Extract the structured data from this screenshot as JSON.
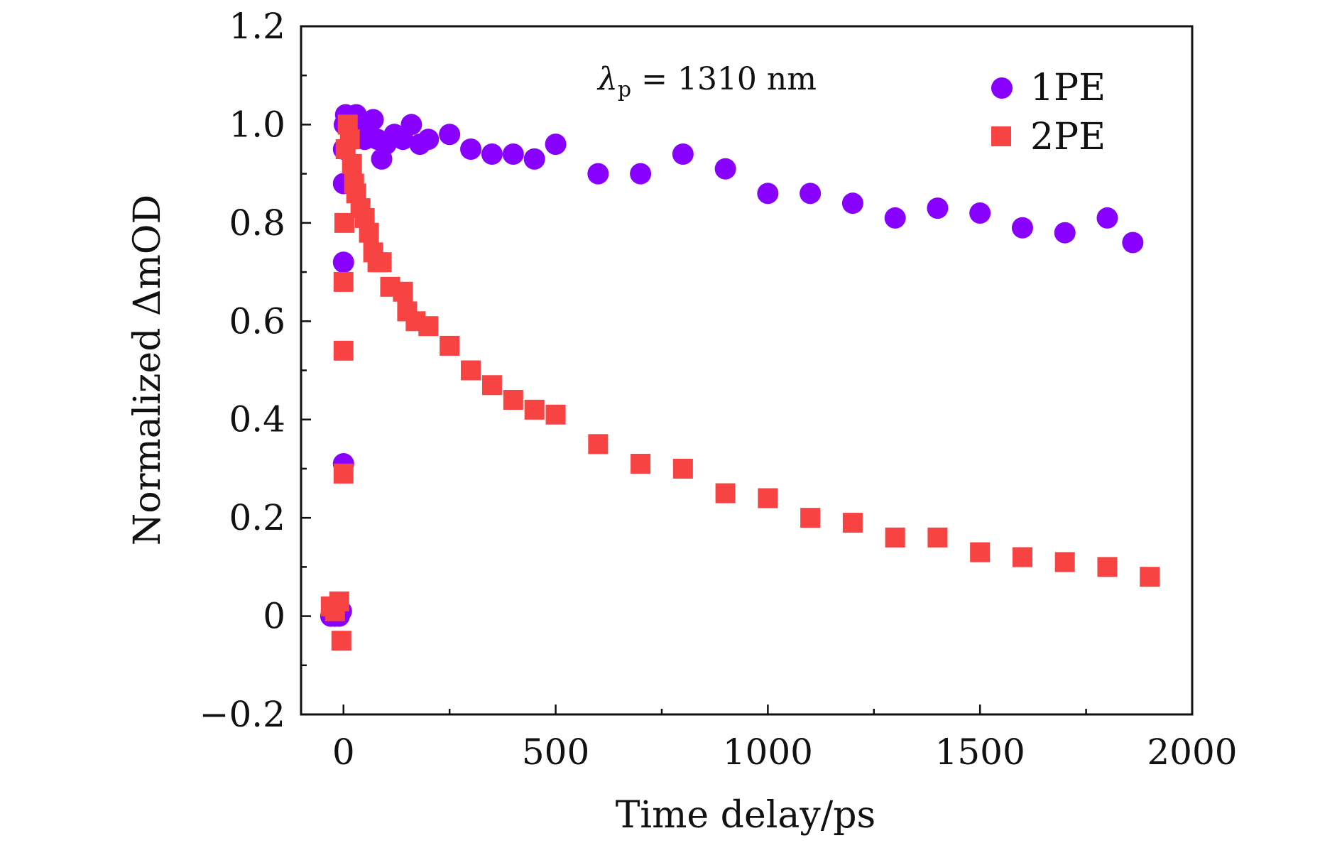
{
  "chart_data": {
    "type": "scatter",
    "title": "",
    "xlabel": "Time delay/ps",
    "ylabel": "Normalized ΔmOD",
    "xlim": [
      -100,
      2000
    ],
    "ylim": [
      -0.2,
      1.2
    ],
    "x_ticks": [
      0,
      500,
      1000,
      1500,
      2000
    ],
    "x_tick_labels": [
      "0",
      "500",
      "1000",
      "1500",
      "2000"
    ],
    "y_ticks": [
      -0.2,
      0,
      0.2,
      0.4,
      0.6,
      0.8,
      1.0,
      1.2
    ],
    "y_tick_labels": [
      "−0.2",
      "0",
      "0.2",
      "0.4",
      "0.6",
      "0.8",
      "1.0",
      "1.2"
    ],
    "grid": false,
    "legend_position": "top-right",
    "annotation": {
      "symbol": "λ",
      "subscript": "p",
      "text": " = 1310 nm"
    },
    "series": [
      {
        "name": "1PE",
        "marker": "circle",
        "color": "#8800ff",
        "points": [
          [
            -30,
            0.0
          ],
          [
            -20,
            0.0
          ],
          [
            -10,
            0.0
          ],
          [
            -5,
            0.01
          ],
          [
            0,
            0.31
          ],
          [
            0,
            0.72
          ],
          [
            0,
            0.88
          ],
          [
            0,
            0.95
          ],
          [
            2,
            1.0
          ],
          [
            5,
            1.02
          ],
          [
            10,
            1.0
          ],
          [
            20,
            0.98
          ],
          [
            30,
            1.02
          ],
          [
            40,
            0.99
          ],
          [
            50,
            0.97
          ],
          [
            60,
            1.0
          ],
          [
            70,
            1.01
          ],
          [
            80,
            0.97
          ],
          [
            90,
            0.93
          ],
          [
            100,
            0.96
          ],
          [
            120,
            0.98
          ],
          [
            140,
            0.97
          ],
          [
            160,
            1.0
          ],
          [
            180,
            0.96
          ],
          [
            200,
            0.97
          ],
          [
            250,
            0.98
          ],
          [
            300,
            0.95
          ],
          [
            350,
            0.94
          ],
          [
            400,
            0.94
          ],
          [
            450,
            0.93
          ],
          [
            500,
            0.96
          ],
          [
            600,
            0.9
          ],
          [
            700,
            0.9
          ],
          [
            800,
            0.94
          ],
          [
            900,
            0.91
          ],
          [
            1000,
            0.86
          ],
          [
            1100,
            0.86
          ],
          [
            1200,
            0.84
          ],
          [
            1300,
            0.81
          ],
          [
            1400,
            0.83
          ],
          [
            1500,
            0.82
          ],
          [
            1600,
            0.79
          ],
          [
            1700,
            0.78
          ],
          [
            1800,
            0.81
          ],
          [
            1860,
            0.76
          ]
        ]
      },
      {
        "name": "2PE",
        "marker": "square",
        "color": "#f84343",
        "points": [
          [
            -30,
            0.02
          ],
          [
            -20,
            0.01
          ],
          [
            -10,
            0.03
          ],
          [
            -5,
            -0.05
          ],
          [
            0,
            0.29
          ],
          [
            0,
            0.54
          ],
          [
            0,
            0.68
          ],
          [
            2,
            0.8
          ],
          [
            5,
            0.95
          ],
          [
            10,
            1.0
          ],
          [
            15,
            0.97
          ],
          [
            20,
            0.92
          ],
          [
            25,
            0.88
          ],
          [
            30,
            0.86
          ],
          [
            40,
            0.83
          ],
          [
            50,
            0.81
          ],
          [
            60,
            0.78
          ],
          [
            70,
            0.74
          ],
          [
            80,
            0.72
          ],
          [
            90,
            0.72
          ],
          [
            110,
            0.67
          ],
          [
            140,
            0.66
          ],
          [
            150,
            0.62
          ],
          [
            170,
            0.6
          ],
          [
            200,
            0.59
          ],
          [
            250,
            0.55
          ],
          [
            300,
            0.5
          ],
          [
            350,
            0.47
          ],
          [
            400,
            0.44
          ],
          [
            450,
            0.42
          ],
          [
            500,
            0.41
          ],
          [
            600,
            0.35
          ],
          [
            700,
            0.31
          ],
          [
            800,
            0.3
          ],
          [
            900,
            0.25
          ],
          [
            1000,
            0.24
          ],
          [
            1100,
            0.2
          ],
          [
            1200,
            0.19
          ],
          [
            1300,
            0.16
          ],
          [
            1400,
            0.16
          ],
          [
            1500,
            0.13
          ],
          [
            1600,
            0.12
          ],
          [
            1700,
            0.11
          ],
          [
            1800,
            0.1
          ],
          [
            1900,
            0.08
          ]
        ]
      }
    ]
  }
}
